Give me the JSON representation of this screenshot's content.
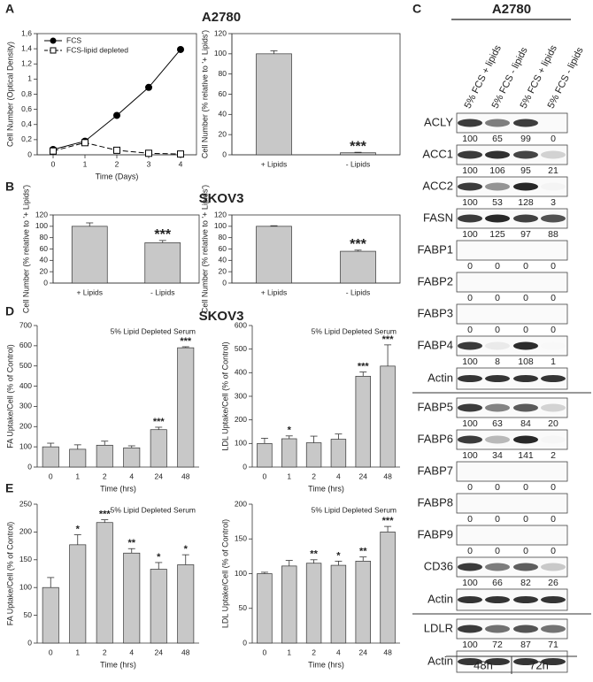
{
  "panels": {
    "letters": [
      "A",
      "B",
      "C",
      "D",
      "E"
    ],
    "headings": [
      "A2780",
      "SKOV3",
      "A2780",
      "SKOV3"
    ]
  },
  "chart_data": [
    {
      "type": "line",
      "xlabel": "Time (Days)",
      "ylabel": "Cell Number (Optical Density)",
      "x": [
        0,
        1,
        2,
        3,
        4
      ],
      "xlim": [
        -0.5,
        4.5
      ],
      "xticks": [
        0,
        1,
        2,
        3,
        4
      ],
      "ylim": [
        0,
        1.6
      ],
      "yticks": [
        0,
        {
          "value": 0.2,
          "label": "0,2"
        },
        {
          "value": 0.4,
          "label": "0,4"
        },
        {
          "value": 0.6,
          "label": "0,6"
        },
        {
          "value": 0.8,
          "label": "0,8"
        },
        1,
        {
          "value": 1.2,
          "label": "1,2"
        },
        {
          "value": 1.4,
          "label": "1,4"
        },
        {
          "value": 1.6,
          "label": "1,6"
        }
      ],
      "legend": "upper left",
      "series": [
        {
          "name": "FCS",
          "color": "#000000",
          "marker": "circle",
          "style": "solid",
          "values": [
            0.07,
            0.18,
            0.52,
            0.89,
            1.39
          ]
        },
        {
          "name": "FCS-lipid depleted",
          "color": "#000000",
          "marker": "square",
          "style": "dashed",
          "values": [
            0.05,
            0.16,
            0.06,
            0.02,
            0.01
          ]
        }
      ]
    },
    {
      "type": "bar",
      "ylabel": "Cell Number (% relative to '+ Lipids')",
      "categories": [
        "+ Lipids",
        "- Lipids"
      ],
      "values": [
        100,
        2
      ],
      "errors": [
        3,
        0.5
      ],
      "annotations": [
        null,
        "***"
      ],
      "color": "#c8c8c8",
      "ylim": [
        0,
        120
      ],
      "yticks": [
        0,
        20,
        40,
        60,
        80,
        100,
        120
      ]
    },
    {
      "type": "bar",
      "ylabel": "Cell Number (% relative to '+ Lipids')",
      "categories": [
        "+ Lipids",
        "- Lipids"
      ],
      "values": [
        100,
        71
      ],
      "errors": [
        6,
        4
      ],
      "annotations": [
        null,
        "***"
      ],
      "color": "#c8c8c8",
      "ylim": [
        0,
        120
      ],
      "yticks": [
        0,
        20,
        40,
        60,
        80,
        100,
        120
      ]
    },
    {
      "type": "bar",
      "ylabel": "Cell Number (% relative to '+ Lipids')",
      "categories": [
        "+ Lipids",
        "- Lipids"
      ],
      "values": [
        100,
        56
      ],
      "errors": [
        1,
        2
      ],
      "annotations": [
        null,
        "***"
      ],
      "color": "#c8c8c8",
      "ylim": [
        0,
        120
      ],
      "yticks": [
        0,
        20,
        40,
        60,
        80,
        100,
        120
      ]
    },
    {
      "type": "bar",
      "note": "5% Lipid Depleted Serum",
      "xlabel": "Time (hrs)",
      "ylabel": "FA Uptake/Cell (% of Control)",
      "categories": [
        "0",
        "1",
        "2",
        "4",
        "24",
        "48"
      ],
      "values": [
        100,
        88,
        108,
        95,
        185,
        590
      ],
      "errors": [
        18,
        22,
        20,
        10,
        12,
        5
      ],
      "annotations": [
        null,
        null,
        null,
        null,
        "***",
        "***"
      ],
      "color": "#c8c8c8",
      "ylim": [
        0,
        700
      ],
      "yticks": [
        0,
        100,
        200,
        300,
        400,
        500,
        600,
        700
      ]
    },
    {
      "type": "bar",
      "note": "5% Lipid Depleted Serum",
      "xlabel": "Time (hrs)",
      "ylabel": "LDL Uptake/Cell (% of Control)",
      "categories": [
        "0",
        "1",
        "2",
        "4",
        "24",
        "48"
      ],
      "values": [
        100,
        120,
        103,
        118,
        385,
        428
      ],
      "errors": [
        22,
        12,
        28,
        22,
        18,
        90
      ],
      "annotations": [
        null,
        "*",
        null,
        null,
        "***",
        "***"
      ],
      "color": "#c8c8c8",
      "ylim": [
        0,
        600
      ],
      "yticks": [
        0,
        100,
        200,
        300,
        400,
        500,
        600
      ]
    },
    {
      "type": "bar",
      "note": "5% Lipid Depleted Serum",
      "xlabel": "Time (hrs)",
      "ylabel": "FA Uptake/Cell (% of Control)",
      "categories": [
        "0",
        "1",
        "2",
        "4",
        "24",
        "48"
      ],
      "values": [
        100,
        177,
        217,
        162,
        133,
        141
      ],
      "errors": [
        18,
        18,
        5,
        8,
        12,
        18
      ],
      "annotations": [
        null,
        "*",
        "***",
        "**",
        "*",
        "*"
      ],
      "color": "#c8c8c8",
      "ylim": [
        0,
        250
      ],
      "yticks": [
        0,
        50,
        100,
        150,
        200,
        250
      ]
    },
    {
      "type": "bar",
      "note": "5% Lipid Depleted Serum",
      "xlabel": "Time (hrs)",
      "ylabel": "LDL Uptake/Cell (% of Control)",
      "categories": [
        "0",
        "1",
        "2",
        "4",
        "24",
        "48"
      ],
      "values": [
        100,
        111,
        115,
        112,
        118,
        160
      ],
      "errors": [
        2,
        8,
        5,
        6,
        6,
        8
      ],
      "annotations": [
        null,
        null,
        "**",
        "*",
        "**",
        "***"
      ],
      "color": "#c8c8c8",
      "ylim": [
        0,
        200
      ],
      "yticks": [
        0,
        50,
        100,
        150,
        200
      ]
    }
  ],
  "blots": {
    "lanes": [
      "5% FCS + lipids",
      "5% FCS - lipids",
      "5% FCS + lipids",
      "5% FCS - lipids"
    ],
    "rows": [
      {
        "protein": "ACLY",
        "quant": [
          100,
          65,
          99,
          0
        ]
      },
      {
        "protein": "ACC1",
        "quant": [
          100,
          106,
          95,
          21
        ]
      },
      {
        "protein": "ACC2",
        "quant": [
          100,
          53,
          128,
          3
        ]
      },
      {
        "protein": "FASN",
        "quant": [
          100,
          125,
          97,
          88
        ]
      },
      {
        "protein": "FABP1",
        "quant": [
          0,
          0,
          0,
          0
        ]
      },
      {
        "protein": "FABP2",
        "quant": [
          0,
          0,
          0,
          0
        ]
      },
      {
        "protein": "FABP3",
        "quant": [
          0,
          0,
          0,
          0
        ]
      },
      {
        "protein": "FABP4",
        "quant": [
          100,
          8,
          108,
          1
        ]
      },
      {
        "protein": "Actin"
      },
      {
        "protein": "FABP5",
        "quant": [
          100,
          63,
          84,
          20
        ]
      },
      {
        "protein": "FABP6",
        "quant": [
          100,
          34,
          141,
          2
        ]
      },
      {
        "protein": "FABP7",
        "quant": [
          0,
          0,
          0,
          0
        ]
      },
      {
        "protein": "FABP8",
        "quant": [
          0,
          0,
          0,
          0
        ]
      },
      {
        "protein": "FABP9",
        "quant": [
          0,
          0,
          0,
          0
        ]
      },
      {
        "protein": "CD36",
        "quant": [
          100,
          66,
          82,
          26
        ]
      },
      {
        "protein": "Actin"
      },
      {
        "protein": "LDLR",
        "quant": [
          100,
          72,
          87,
          71
        ]
      },
      {
        "protein": "Actin"
      }
    ],
    "times": [
      "48h",
      "72h"
    ]
  }
}
